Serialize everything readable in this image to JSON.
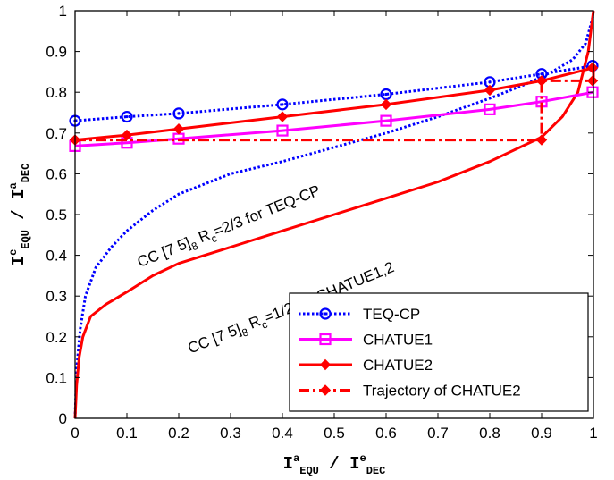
{
  "chart_data": {
    "type": "line",
    "xlabel": {
      "base": "I",
      "sup": "a",
      "sub": "EQU",
      "sep": "  /  ",
      "base2": "I",
      "sup2": "e",
      "sub2": "DEC"
    },
    "ylabel": {
      "base": "I",
      "sup": "e",
      "sub": "EQU",
      "sep": "  /  ",
      "base2": "I",
      "sup2": "a",
      "sub2": "DEC"
    },
    "xlim": [
      0,
      1
    ],
    "ylim": [
      0,
      1
    ],
    "xticks": [
      "0",
      "0.1",
      "0.2",
      "0.3",
      "0.4",
      "0.5",
      "0.6",
      "0.7",
      "0.8",
      "0.9",
      "1"
    ],
    "yticks": [
      "0",
      "0.1",
      "0.2",
      "0.3",
      "0.4",
      "0.5",
      "0.6",
      "0.7",
      "0.8",
      "0.9",
      "1"
    ],
    "grid": false,
    "legend_position": "bottom-right",
    "annotations": [
      {
        "pre": "CC [7 5]",
        "sub": "8",
        "mid": " R",
        "sub2": "c",
        "post": "=2/3 for TEQ-CP",
        "x": 0.3,
        "y": 0.46,
        "angle": -22
      },
      {
        "pre": "CC [7 5]",
        "sub": "8",
        "mid": " R",
        "sub2": "c",
        "post": "=1/2 for CHATUE1,2",
        "x": 0.42,
        "y": 0.26,
        "angle": -22
      }
    ],
    "series": [
      {
        "name": "TEQ-CP",
        "color": "#0000ff",
        "style": "dotted",
        "marker": "circle",
        "x": [
          0,
          0.1,
          0.2,
          0.4,
          0.6,
          0.8,
          0.9,
          1.0
        ],
        "y": [
          0.73,
          0.74,
          0.748,
          0.77,
          0.795,
          0.825,
          0.845,
          0.865
        ]
      },
      {
        "name": "CHATUE1",
        "color": "#ff00ff",
        "style": "solid",
        "marker": "square",
        "x": [
          0,
          0.1,
          0.2,
          0.4,
          0.6,
          0.8,
          0.9,
          1.0
        ],
        "y": [
          0.668,
          0.676,
          0.686,
          0.706,
          0.73,
          0.758,
          0.777,
          0.8
        ]
      },
      {
        "name": "CHATUE2",
        "color": "#ff0000",
        "style": "solid",
        "marker": "diamond",
        "x": [
          0,
          0.1,
          0.2,
          0.4,
          0.6,
          0.8,
          0.9,
          1.0
        ],
        "y": [
          0.683,
          0.695,
          0.71,
          0.74,
          0.77,
          0.805,
          0.828,
          0.86
        ]
      },
      {
        "name": "Trajectory of CHATUE2",
        "color": "#ff0000",
        "style": "dashdot",
        "marker": "diamond",
        "x": [
          0,
          0.9,
          0.9,
          1.0,
          1.0
        ],
        "y": [
          0.683,
          0.683,
          0.828,
          0.828,
          0.86
        ]
      }
    ],
    "curves": [
      {
        "series": "TEQ-CP",
        "color": "#0000ff",
        "style": "dotted",
        "x": [
          0,
          0.003,
          0.01,
          0.02,
          0.04,
          0.07,
          0.1,
          0.15,
          0.2,
          0.3,
          0.4,
          0.5,
          0.6,
          0.7,
          0.8,
          0.87,
          0.92,
          0.96,
          0.985,
          1.0
        ],
        "y": [
          0,
          0.12,
          0.22,
          0.3,
          0.37,
          0.42,
          0.46,
          0.51,
          0.55,
          0.6,
          0.63,
          0.665,
          0.7,
          0.74,
          0.785,
          0.82,
          0.85,
          0.88,
          0.92,
          0.99
        ]
      },
      {
        "series": "CHATUE2",
        "color": "#ff0000",
        "style": "solid",
        "x": [
          0,
          0.003,
          0.008,
          0.015,
          0.03,
          0.06,
          0.1,
          0.15,
          0.2,
          0.3,
          0.4,
          0.5,
          0.6,
          0.7,
          0.8,
          0.9,
          0.94,
          0.97,
          0.99,
          1.0
        ],
        "y": [
          0,
          0.08,
          0.15,
          0.2,
          0.25,
          0.28,
          0.31,
          0.35,
          0.38,
          0.42,
          0.46,
          0.5,
          0.54,
          0.58,
          0.63,
          0.69,
          0.74,
          0.8,
          0.9,
          1.0
        ]
      }
    ]
  }
}
